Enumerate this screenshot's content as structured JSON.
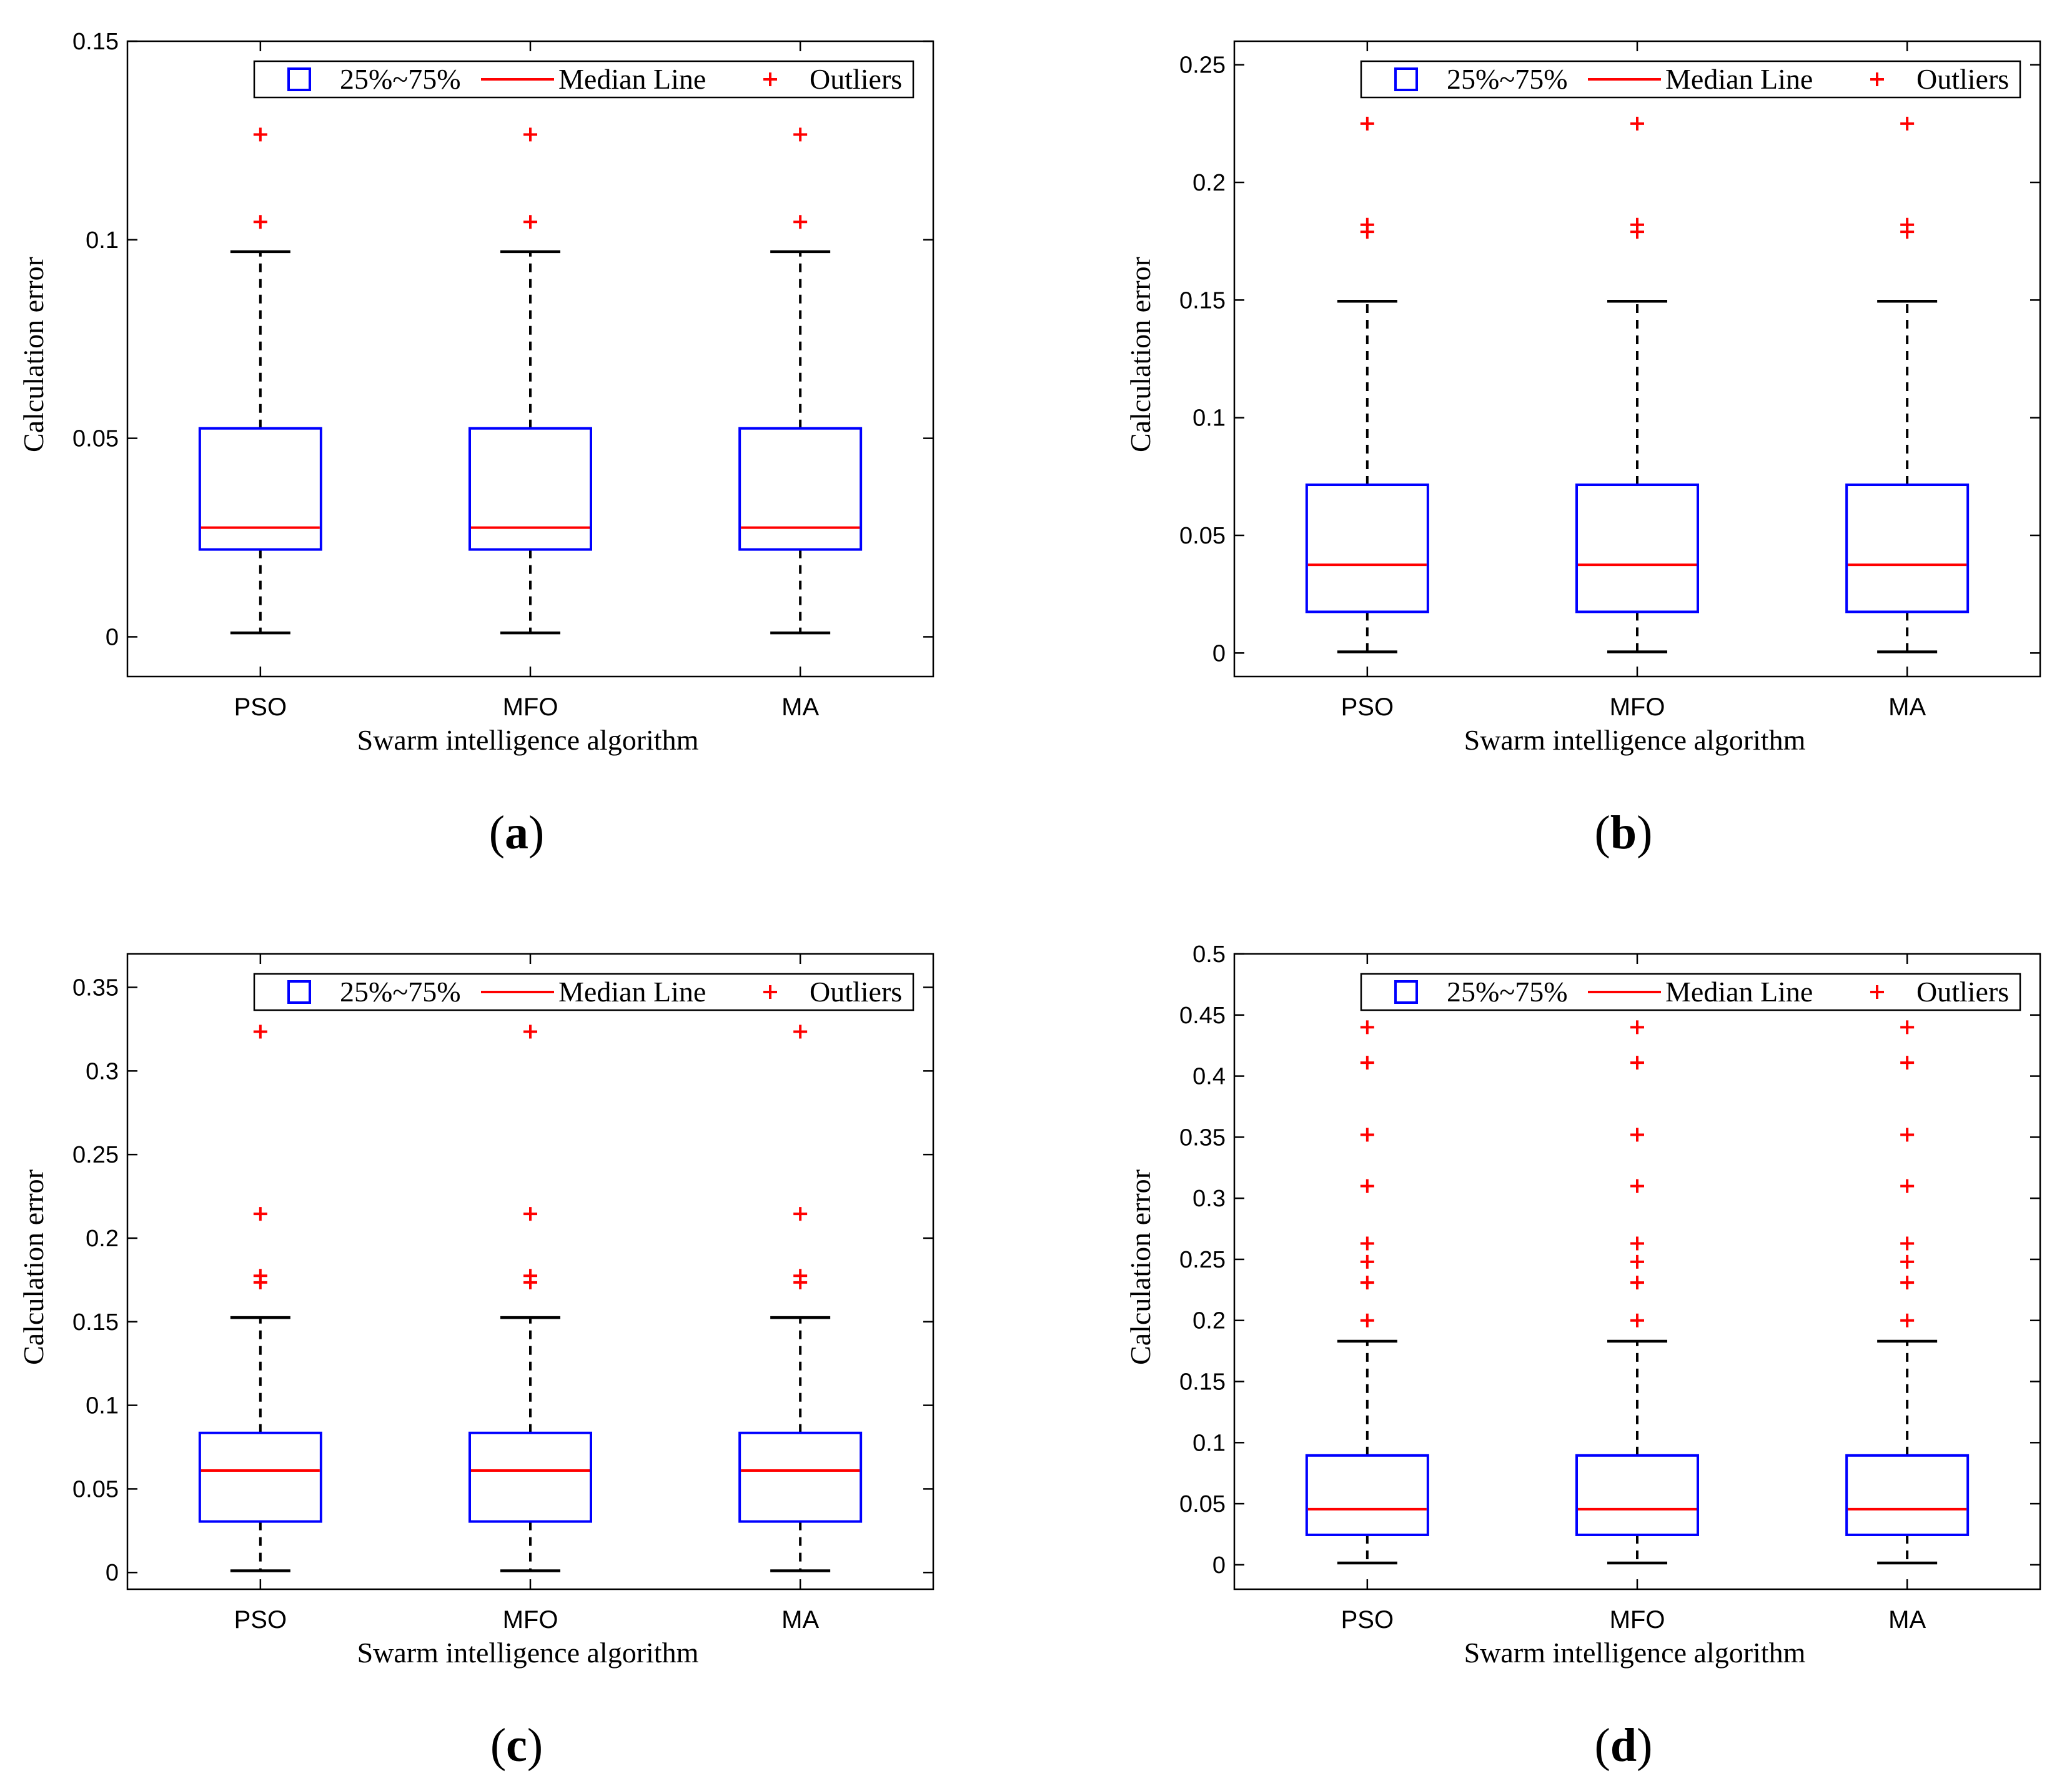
{
  "chart_data": [
    {
      "type": "box",
      "panel_label": "a",
      "xlabel": "Swarm intelligence algorithm",
      "ylabel": "Calculation error",
      "ylim": [
        -0.01,
        0.15
      ],
      "yticks": [
        0,
        0.05,
        0.1,
        0.15
      ],
      "ytick_labels": [
        "0",
        "0.05",
        "0.1",
        "0.15"
      ],
      "categories": [
        "PSO",
        "MFO",
        "MA"
      ],
      "legend": {
        "box": "25%~75%",
        "median": "Median Line",
        "outlier": "Outliers",
        "position": "top"
      },
      "boxes": [
        {
          "name": "PSO",
          "whisker_low": 0.001,
          "q1": 0.022,
          "median": 0.0275,
          "q3": 0.0525,
          "whisker_high": 0.097,
          "outliers": [
            0.1045,
            0.1265
          ]
        },
        {
          "name": "MFO",
          "whisker_low": 0.001,
          "q1": 0.022,
          "median": 0.0275,
          "q3": 0.0525,
          "whisker_high": 0.097,
          "outliers": [
            0.1045,
            0.1265
          ]
        },
        {
          "name": "MA",
          "whisker_low": 0.001,
          "q1": 0.022,
          "median": 0.0275,
          "q3": 0.0525,
          "whisker_high": 0.097,
          "outliers": [
            0.1045,
            0.1265
          ]
        }
      ]
    },
    {
      "type": "box",
      "panel_label": "b",
      "xlabel": "Swarm intelligence algorithm",
      "ylabel": "Calculation error",
      "ylim": [
        -0.01,
        0.26
      ],
      "yticks": [
        0,
        0.05,
        0.1,
        0.15,
        0.2,
        0.25
      ],
      "ytick_labels": [
        "0",
        "0.05",
        "0.1",
        "0.15",
        "0.2",
        "0.25"
      ],
      "categories": [
        "PSO",
        "MFO",
        "MA"
      ],
      "legend": {
        "box": "25%~75%",
        "median": "Median Line",
        "outlier": "Outliers",
        "position": "top"
      },
      "boxes": [
        {
          "name": "PSO",
          "whisker_low": 0.0005,
          "q1": 0.0175,
          "median": 0.0375,
          "q3": 0.0715,
          "whisker_high": 0.1495,
          "outliers": [
            0.179,
            0.182,
            0.225
          ]
        },
        {
          "name": "MFO",
          "whisker_low": 0.0005,
          "q1": 0.0175,
          "median": 0.0375,
          "q3": 0.0715,
          "whisker_high": 0.1495,
          "outliers": [
            0.179,
            0.182,
            0.225
          ]
        },
        {
          "name": "MA",
          "whisker_low": 0.0005,
          "q1": 0.0175,
          "median": 0.0375,
          "q3": 0.0715,
          "whisker_high": 0.1495,
          "outliers": [
            0.179,
            0.182,
            0.225
          ]
        }
      ]
    },
    {
      "type": "box",
      "panel_label": "c",
      "xlabel": "Swarm intelligence algorithm",
      "ylabel": "Calculation error",
      "ylim": [
        -0.01,
        0.37
      ],
      "yticks": [
        0,
        0.05,
        0.1,
        0.15,
        0.2,
        0.25,
        0.3,
        0.35
      ],
      "ytick_labels": [
        "0",
        "0.05",
        "0.1",
        "0.15",
        "0.2",
        "0.25",
        "0.3",
        "0.35"
      ],
      "categories": [
        "PSO",
        "MFO",
        "MA"
      ],
      "legend": {
        "box": "25%~75%",
        "median": "Median Line",
        "outlier": "Outliers",
        "position": "top"
      },
      "boxes": [
        {
          "name": "PSO",
          "whisker_low": 0.001,
          "q1": 0.0305,
          "median": 0.061,
          "q3": 0.0835,
          "whisker_high": 0.1525,
          "outliers": [
            0.1735,
            0.1775,
            0.2145,
            0.3235
          ]
        },
        {
          "name": "MFO",
          "whisker_low": 0.001,
          "q1": 0.0305,
          "median": 0.061,
          "q3": 0.0835,
          "whisker_high": 0.1525,
          "outliers": [
            0.1735,
            0.1775,
            0.2145,
            0.3235
          ]
        },
        {
          "name": "MA",
          "whisker_low": 0.001,
          "q1": 0.0305,
          "median": 0.061,
          "q3": 0.0835,
          "whisker_high": 0.1525,
          "outliers": [
            0.1735,
            0.1775,
            0.2145,
            0.3235
          ]
        }
      ]
    },
    {
      "type": "box",
      "panel_label": "d",
      "xlabel": "Swarm intelligence algorithm",
      "ylabel": "Calculation error",
      "ylim": [
        -0.02,
        0.5
      ],
      "yticks": [
        0,
        0.05,
        0.1,
        0.15,
        0.2,
        0.25,
        0.3,
        0.35,
        0.4,
        0.45,
        0.5
      ],
      "ytick_labels": [
        "0",
        "0.05",
        "0.1",
        "0.15",
        "0.2",
        "0.25",
        "0.3",
        "0.35",
        "0.4",
        "0.45",
        "0.5"
      ],
      "categories": [
        "PSO",
        "MFO",
        "MA"
      ],
      "legend": {
        "box": "25%~75%",
        "median": "Median Line",
        "outlier": "Outliers",
        "position": "top"
      },
      "boxes": [
        {
          "name": "PSO",
          "whisker_low": 0.0015,
          "q1": 0.0245,
          "median": 0.0455,
          "q3": 0.0895,
          "whisker_high": 0.183,
          "outliers": [
            0.2,
            0.231,
            0.248,
            0.263,
            0.31,
            0.352,
            0.411,
            0.44
          ]
        },
        {
          "name": "MFO",
          "whisker_low": 0.0015,
          "q1": 0.0245,
          "median": 0.0455,
          "q3": 0.0895,
          "whisker_high": 0.183,
          "outliers": [
            0.2,
            0.231,
            0.248,
            0.263,
            0.31,
            0.352,
            0.411,
            0.44
          ]
        },
        {
          "name": "MA",
          "whisker_low": 0.0015,
          "q1": 0.0245,
          "median": 0.0455,
          "q3": 0.0895,
          "whisker_high": 0.183,
          "outliers": [
            0.2,
            0.231,
            0.248,
            0.263,
            0.31,
            0.352,
            0.411,
            0.44
          ]
        }
      ]
    }
  ],
  "colors": {
    "box": "#0000ff",
    "median": "#ff0000",
    "outlier": "#ff0000",
    "whisker": "#000000",
    "axes": "#000000"
  }
}
